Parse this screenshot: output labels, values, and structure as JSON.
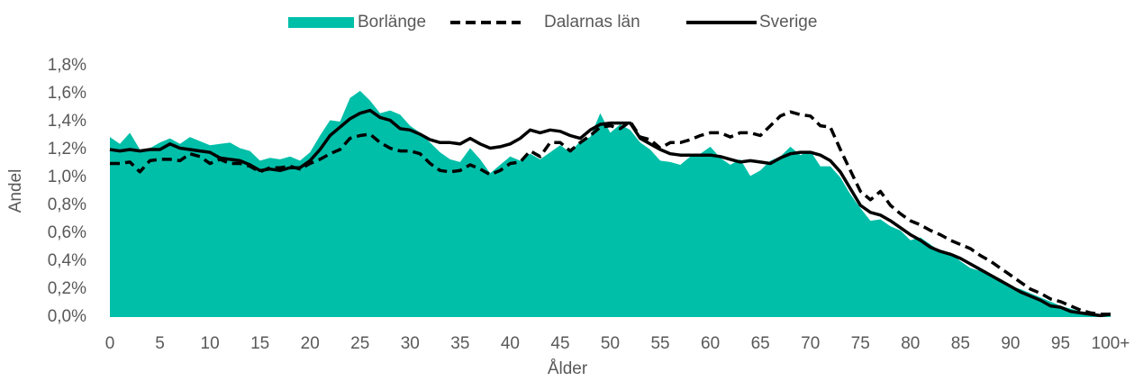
{
  "chart_data": {
    "type": "line",
    "x_label": "Ålder",
    "y_label": "Andel",
    "categories": [
      "0",
      null,
      null,
      null,
      null,
      "5",
      null,
      null,
      null,
      null,
      "10",
      null,
      null,
      null,
      null,
      "15",
      null,
      null,
      null,
      null,
      "20",
      null,
      null,
      null,
      null,
      "25",
      null,
      null,
      null,
      null,
      "30",
      null,
      null,
      null,
      null,
      "35",
      null,
      null,
      null,
      null,
      "40",
      null,
      null,
      null,
      null,
      "45",
      null,
      null,
      null,
      null,
      "50",
      null,
      null,
      null,
      null,
      "55",
      null,
      null,
      null,
      null,
      "60",
      null,
      null,
      null,
      null,
      "65",
      null,
      null,
      null,
      null,
      "70",
      null,
      null,
      null,
      null,
      "75",
      null,
      null,
      null,
      null,
      "80",
      null,
      null,
      null,
      null,
      "85",
      null,
      null,
      null,
      null,
      "90",
      null,
      null,
      null,
      null,
      "95",
      null,
      null,
      null,
      null,
      "100+"
    ],
    "ylim": [
      0,
      1.8
    ],
    "yticks": [
      {
        "value": 0,
        "label": "0,0%"
      },
      {
        "value": 0.2,
        "label": "0,2%"
      },
      {
        "value": 0.4,
        "label": "0,4%"
      },
      {
        "value": 0.6,
        "label": "0,6%"
      },
      {
        "value": 0.8,
        "label": "0,8%"
      },
      {
        "value": 1.0,
        "label": "1,0%"
      },
      {
        "value": 1.2,
        "label": "1,2%"
      },
      {
        "value": 1.4,
        "label": "1,4%"
      },
      {
        "value": 1.6,
        "label": "1,6%"
      },
      {
        "value": 1.8,
        "label": "1,8%"
      }
    ],
    "grid": false,
    "legend": "top",
    "series": [
      {
        "name": "Borlänge",
        "style": "area",
        "color": "#00bfa8",
        "values": [
          1.29,
          1.24,
          1.32,
          1.2,
          1.21,
          1.25,
          1.28,
          1.24,
          1.29,
          1.26,
          1.23,
          1.24,
          1.25,
          1.21,
          1.19,
          1.12,
          1.14,
          1.13,
          1.15,
          1.12,
          1.18,
          1.3,
          1.41,
          1.4,
          1.57,
          1.62,
          1.55,
          1.46,
          1.48,
          1.45,
          1.37,
          1.32,
          1.25,
          1.18,
          1.13,
          1.11,
          1.21,
          1.13,
          1.03,
          1.09,
          1.15,
          1.12,
          1.17,
          1.13,
          1.18,
          1.23,
          1.18,
          1.26,
          1.29,
          1.46,
          1.32,
          1.38,
          1.34,
          1.25,
          1.2,
          1.12,
          1.11,
          1.09,
          1.15,
          1.17,
          1.22,
          1.14,
          1.09,
          1.13,
          1.01,
          1.05,
          1.12,
          1.15,
          1.22,
          1.16,
          1.19,
          1.08,
          1.08,
          1.0,
          0.88,
          0.78,
          0.69,
          0.7,
          0.65,
          0.62,
          0.55,
          0.57,
          0.52,
          0.47,
          0.46,
          0.4,
          0.35,
          0.33,
          0.3,
          0.26,
          0.22,
          0.2,
          0.17,
          0.14,
          0.11,
          0.08,
          0.06,
          0.04,
          0.02,
          0.01,
          0.02
        ]
      },
      {
        "name": "Dalarnas län",
        "style": "dashed",
        "color": "#000000",
        "values": [
          1.1,
          1.1,
          1.11,
          1.04,
          1.12,
          1.13,
          1.13,
          1.12,
          1.17,
          1.15,
          1.1,
          1.13,
          1.1,
          1.1,
          1.08,
          1.04,
          1.07,
          1.07,
          1.08,
          1.06,
          1.1,
          1.13,
          1.17,
          1.2,
          1.28,
          1.3,
          1.31,
          1.25,
          1.21,
          1.19,
          1.19,
          1.17,
          1.1,
          1.05,
          1.04,
          1.05,
          1.09,
          1.06,
          1.02,
          1.05,
          1.1,
          1.11,
          1.19,
          1.15,
          1.25,
          1.25,
          1.19,
          1.25,
          1.3,
          1.36,
          1.37,
          1.35,
          1.4,
          1.29,
          1.27,
          1.21,
          1.25,
          1.25,
          1.27,
          1.3,
          1.32,
          1.32,
          1.29,
          1.32,
          1.32,
          1.3,
          1.37,
          1.44,
          1.47,
          1.45,
          1.44,
          1.37,
          1.36,
          1.2,
          1.05,
          0.9,
          0.84,
          0.9,
          0.8,
          0.74,
          0.69,
          0.66,
          0.62,
          0.59,
          0.55,
          0.52,
          0.49,
          0.44,
          0.4,
          0.35,
          0.3,
          0.25,
          0.2,
          0.17,
          0.13,
          0.11,
          0.08,
          0.05,
          0.03,
          0.02,
          0.02
        ]
      },
      {
        "name": "Sverige",
        "style": "solid",
        "color": "#000000",
        "values": [
          1.2,
          1.19,
          1.2,
          1.19,
          1.2,
          1.2,
          1.24,
          1.21,
          1.2,
          1.19,
          1.18,
          1.14,
          1.13,
          1.12,
          1.09,
          1.05,
          1.06,
          1.05,
          1.07,
          1.07,
          1.12,
          1.2,
          1.3,
          1.36,
          1.42,
          1.46,
          1.48,
          1.43,
          1.41,
          1.35,
          1.34,
          1.31,
          1.27,
          1.25,
          1.25,
          1.24,
          1.28,
          1.24,
          1.21,
          1.22,
          1.24,
          1.28,
          1.34,
          1.32,
          1.34,
          1.33,
          1.3,
          1.28,
          1.34,
          1.38,
          1.39,
          1.39,
          1.39,
          1.28,
          1.24,
          1.2,
          1.17,
          1.16,
          1.16,
          1.16,
          1.16,
          1.15,
          1.13,
          1.11,
          1.12,
          1.11,
          1.1,
          1.14,
          1.17,
          1.18,
          1.18,
          1.16,
          1.12,
          1.04,
          0.92,
          0.8,
          0.75,
          0.73,
          0.69,
          0.64,
          0.59,
          0.55,
          0.5,
          0.47,
          0.45,
          0.42,
          0.38,
          0.34,
          0.3,
          0.26,
          0.22,
          0.18,
          0.15,
          0.12,
          0.08,
          0.07,
          0.04,
          0.03,
          0.02,
          0.01,
          0.02
        ]
      }
    ]
  }
}
